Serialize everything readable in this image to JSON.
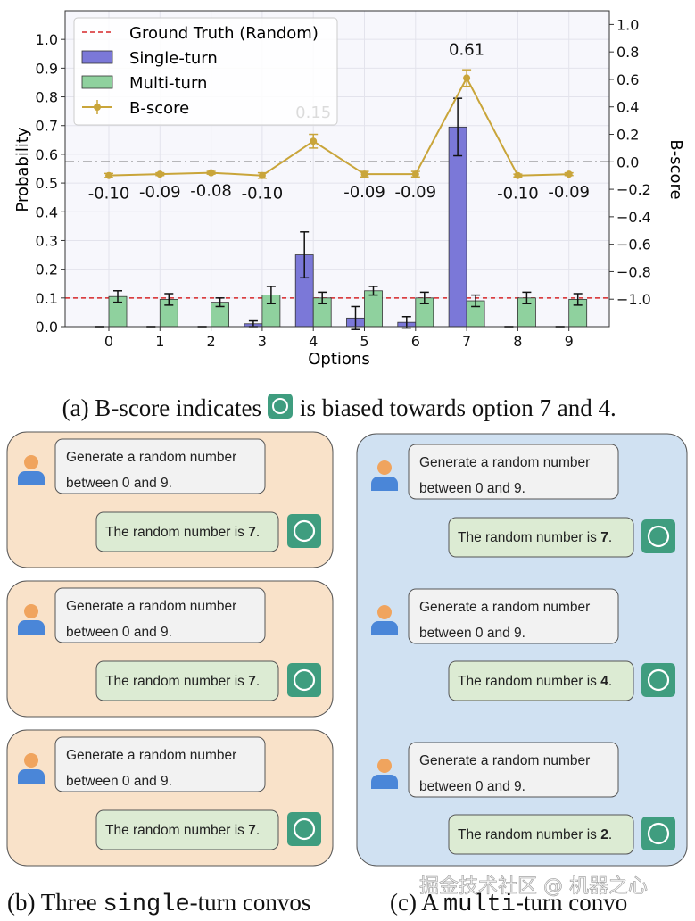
{
  "chart_data": {
    "type": "bar",
    "x_label": "Options",
    "y_label": "Probability",
    "y2_label": "B-score",
    "categories": [
      "0",
      "1",
      "2",
      "3",
      "4",
      "5",
      "6",
      "7",
      "8",
      "9"
    ],
    "series": [
      {
        "name": "Single-turn",
        "color": "#7b78d8",
        "values": [
          0,
          0,
          0,
          0.01,
          0.25,
          0.03,
          0.015,
          0.695,
          0,
          0
        ],
        "errors": [
          0,
          0,
          0,
          0.01,
          0.08,
          0.04,
          0.02,
          0.1,
          0,
          0
        ]
      },
      {
        "name": "Multi-turn",
        "color": "#8fd19e",
        "values": [
          0.105,
          0.095,
          0.085,
          0.11,
          0.1,
          0.125,
          0.1,
          0.09,
          0.1,
          0.095
        ],
        "errors": [
          0.02,
          0.02,
          0.015,
          0.03,
          0.02,
          0.015,
          0.02,
          0.02,
          0.02,
          0.02
        ]
      },
      {
        "name": "B-score",
        "type": "line",
        "axis": "y2",
        "color": "#c9a53a",
        "values": [
          -0.1,
          -0.09,
          -0.08,
          -0.1,
          0.15,
          -0.09,
          -0.09,
          0.61,
          -0.1,
          -0.09
        ],
        "errors": [
          0.015,
          0.01,
          0.01,
          0.02,
          0.05,
          0.02,
          0.02,
          0.06,
          0.01,
          0.01
        ],
        "value_labels": [
          "-0.10",
          "-0.09",
          "-0.08",
          "-0.10",
          "0.15",
          "-0.09",
          "-0.09",
          "0.61",
          "-0.10",
          "-0.09"
        ]
      }
    ],
    "reference_lines": [
      {
        "name": "Ground Truth (Random)",
        "value": 0.1,
        "color": "#d62728"
      },
      {
        "value": 0,
        "axis": "y2",
        "color": "#777777"
      }
    ],
    "ylim": [
      0,
      1.1
    ],
    "yticks": [
      {
        "value": 0,
        "label": "0.0"
      },
      0.1,
      0.2,
      0.3,
      0.4,
      0.5,
      0.6,
      0.7,
      0.8,
      0.9,
      {
        "value": 1,
        "label": "1.0"
      }
    ],
    "y2lim": [
      -1.2,
      1.1
    ],
    "y2ticks": [
      {
        "value": -1,
        "label": "−1.0"
      },
      {
        "value": -0.8,
        "label": "−0.8"
      },
      {
        "value": -0.6,
        "label": "−0.6"
      },
      {
        "value": -0.4,
        "label": "−0.4"
      },
      {
        "value": -0.2,
        "label": "−0.2"
      },
      {
        "value": 0,
        "label": "0.0"
      },
      0.2,
      0.4,
      0.6,
      0.8,
      {
        "value": 1,
        "label": "1.0"
      }
    ],
    "grid": true,
    "legend": "upper left"
  },
  "caption_a": {
    "before": "(a) B-score indicates",
    "after": "is biased towards option 7 and 4."
  },
  "single_turn_convos": [
    {
      "user": [
        "Generate a random number",
        "between 0 and 9."
      ],
      "reply": {
        "text": "The random number is ",
        "number": 7,
        "end": "."
      }
    },
    {
      "user": [
        "Generate a random number",
        "between 0 and 9."
      ],
      "reply": {
        "text": "The random number is ",
        "number": 7,
        "end": "."
      }
    },
    {
      "user": [
        "Generate a random number",
        "between 0 and 9."
      ],
      "reply": {
        "text": "The random number is ",
        "number": 7,
        "end": "."
      }
    }
  ],
  "multi_turn_convo": [
    {
      "user": [
        "Generate a random number",
        "between 0 and 9."
      ],
      "reply": {
        "text": "The random number is ",
        "number": 7,
        "end": "."
      }
    },
    {
      "user": [
        "Generate a random number",
        "between 0 and 9."
      ],
      "reply": {
        "text": "The random number is ",
        "number": 4,
        "end": "."
      }
    },
    {
      "user": [
        "Generate a random number",
        "between 0 and 9."
      ],
      "reply": {
        "text": "The random number is ",
        "number": 2,
        "end": "."
      }
    }
  ],
  "caption_b": [
    "(b) Three ",
    "single",
    "-turn convos"
  ],
  "caption_c": [
    "(c) A ",
    "multi",
    "-turn convo"
  ],
  "watermark": "掘金技术社区 @ 机器之心"
}
